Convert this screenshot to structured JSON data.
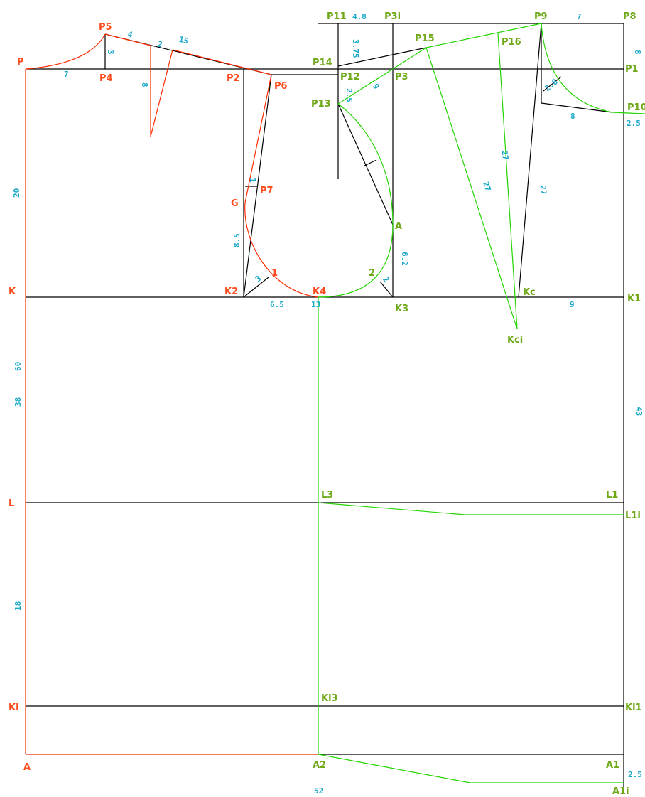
{
  "colors": {
    "red": "#ff2a00",
    "green": "#22d400",
    "black": "#000000",
    "label_red": "#ff4a1c",
    "label_green": "#6fa816",
    "dim_blue": "#1aa8c8"
  },
  "points": {
    "P": "P",
    "P1": "P1",
    "P2": "P2",
    "P3": "P3",
    "P3i": "P3i",
    "P4": "P4",
    "P5": "P5",
    "P6": "P6",
    "P7": "P7",
    "P8": "P8",
    "P9": "P9",
    "P10": "P10",
    "P11": "P11",
    "P12": "P12",
    "P13": "P13",
    "P14": "P14",
    "P15": "P15",
    "P16": "P16",
    "G": "G",
    "A_pt": "A",
    "K": "K",
    "K1": "K1",
    "K2": "K2",
    "K3": "K3",
    "K4": "K4",
    "Kc": "Kc",
    "Kci": "Kci",
    "L": "L",
    "L1": "L1",
    "L1i": "L1i",
    "L3": "L3",
    "Kl": "Kl",
    "Kl1": "Kl1",
    "Kl3": "Kl3",
    "A": "A",
    "A1": "A1",
    "A1i": "A1i",
    "A2": "A2",
    "one": "1",
    "two": "2"
  },
  "dims": {
    "d7_top": "7",
    "d3_p4": "3",
    "d4_shoulder": "4",
    "d2_dart": "2",
    "d15_shoulder": "15",
    "d8_dart": "8",
    "d48": "4.8",
    "d375": "3.75",
    "d25": "2.5",
    "d9_p13": "9",
    "d7_back": "7",
    "d8_p1": "8",
    "d25_p10": "2.5",
    "d28": "2.8",
    "d8_back": "8",
    "d27_a": "27",
    "d27_b": "27",
    "d27_c": "27",
    "d20": "20",
    "d1_p7": "1",
    "d85": "8.5",
    "d3_k2": "3",
    "d65": "6.5",
    "d13": "13",
    "d62": "6.2",
    "d2_k3": "2",
    "d9_kc": "9",
    "d60": "60",
    "d38": "38",
    "d43": "43",
    "d18": "18",
    "d52": "52",
    "d25_a1": "2.5"
  }
}
